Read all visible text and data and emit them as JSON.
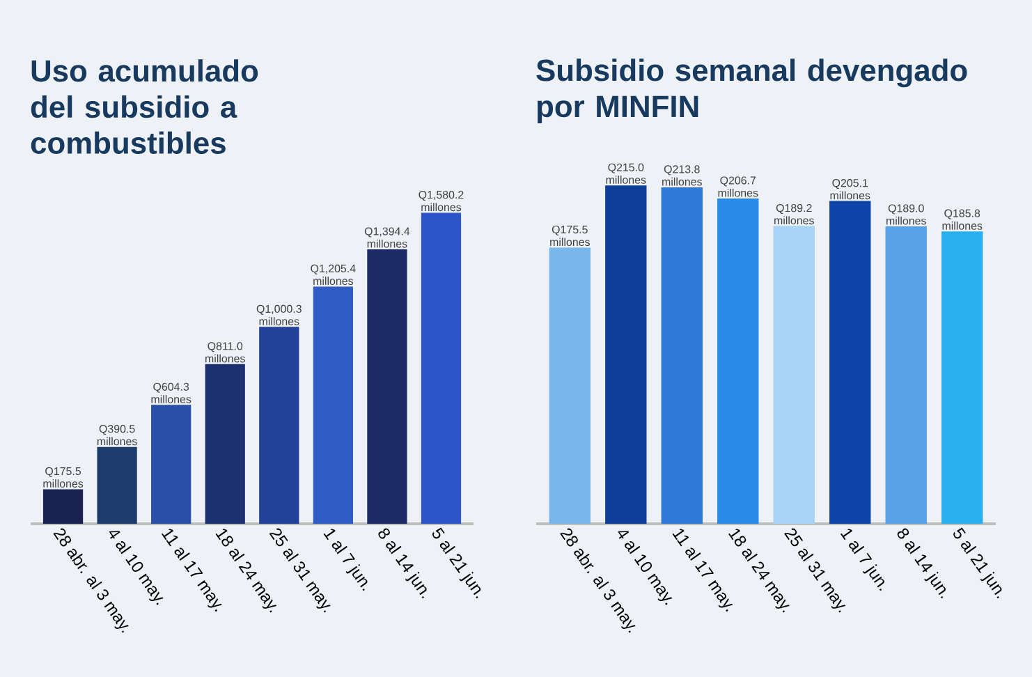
{
  "chart_data": [
    {
      "type": "bar",
      "title": "Uso acumulado del subsidio a combustibles",
      "categories": [
        "28 abr. al 3 may.",
        "4 al 10 may.",
        "11 al 17 may.",
        "18 al 24 may.",
        "25 al 31 may.",
        "1 al 7 jun.",
        "8 al 14 jun.",
        "5 al 21 jun."
      ],
      "values": [
        175.5,
        390.5,
        604.3,
        811.0,
        1000.3,
        1205.4,
        1394.4,
        1580.2
      ],
      "colors": [
        "#1a2350",
        "#1d3c6e",
        "#2a4fa8",
        "#1d3070",
        "#24419a",
        "#2f5bc4",
        "#1c2a66",
        "#2d55c8"
      ],
      "value_labels": [
        "Q175.5 millones",
        "Q390.5 millones",
        "Q604.3 millones",
        "Q811.0 millones",
        "Q1,000.3 millones",
        "Q1,205.4 millones",
        "Q1,394.4 millones",
        "Q1,580.2 millones"
      ]
    },
    {
      "type": "bar",
      "title": "Subsidio semanal devengado por MINFIN",
      "categories": [
        "28 abr. al 3 may.",
        "4 al 10 may.",
        "11 al 17 may.",
        "18 al 24 may.",
        "25 al 31 may.",
        "1 al 7 jun.",
        "8 al 14 jun.",
        "5 al 21 jun."
      ],
      "values": [
        175.5,
        215.0,
        213.8,
        206.7,
        189.2,
        205.1,
        189.0,
        185.8
      ],
      "colors": [
        "#7ab8ec",
        "#0d3f9a",
        "#2f7ad8",
        "#2a8ae8",
        "#a6d3f6",
        "#0e44a8",
        "#5aa2e8",
        "#2ab0f0"
      ],
      "value_labels": [
        "Q175.5 millones",
        "Q215.0 millones",
        "Q213.8 millones",
        "Q206.7 millones",
        "Q189.2 millones",
        "Q205.1 millones",
        "Q189.0 millones",
        "Q185.8 millones"
      ]
    }
  ]
}
